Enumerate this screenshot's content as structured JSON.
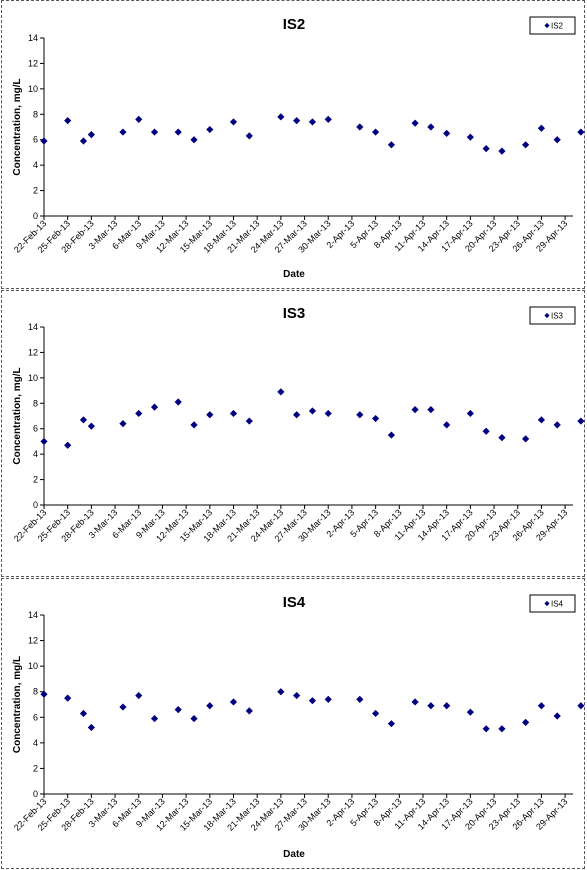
{
  "chart_data": [
    {
      "type": "scatter",
      "title": "IS2",
      "xlabel": "Date",
      "ylabel": "Concentration, mg/L",
      "ylim": [
        0,
        14
      ],
      "yticks": [
        0,
        2,
        4,
        6,
        8,
        10,
        12,
        14
      ],
      "xlim": [
        "2013-02-22",
        "2013-04-30"
      ],
      "xtick_labels": [
        "22-Feb-13",
        "25-Feb-13",
        "28-Feb-13",
        "3-Mar-13",
        "6-Mar-13",
        "9-Mar-13",
        "12-Mar-13",
        "15-Mar-13",
        "18-Mar-13",
        "21-Mar-13",
        "24-Mar-13",
        "27-Mar-13",
        "30-Mar-13",
        "2-Apr-13",
        "5-Apr-13",
        "8-Apr-13",
        "11-Apr-13",
        "14-Apr-13",
        "17-Apr-13",
        "20-Apr-13",
        "23-Apr-13",
        "26-Apr-13",
        "29-Apr-13"
      ],
      "legend": "top-right",
      "grid": false,
      "marker_color": "#000080",
      "series": [
        {
          "name": "IS2",
          "points": [
            [
              "2013-02-22",
              5.9
            ],
            [
              "2013-02-25",
              7.5
            ],
            [
              "2013-02-27",
              5.9
            ],
            [
              "2013-02-28",
              6.4
            ],
            [
              "2013-03-04",
              6.6
            ],
            [
              "2013-03-06",
              7.6
            ],
            [
              "2013-03-08",
              6.6
            ],
            [
              "2013-03-11",
              6.6
            ],
            [
              "2013-03-13",
              6.0
            ],
            [
              "2013-03-15",
              6.8
            ],
            [
              "2013-03-18",
              7.4
            ],
            [
              "2013-03-20",
              6.3
            ],
            [
              "2013-03-24",
              7.8
            ],
            [
              "2013-03-26",
              7.5
            ],
            [
              "2013-03-28",
              7.4
            ],
            [
              "2013-03-30",
              7.6
            ],
            [
              "2013-04-03",
              7.0
            ],
            [
              "2013-04-05",
              6.6
            ],
            [
              "2013-04-07",
              5.6
            ],
            [
              "2013-04-10",
              7.3
            ],
            [
              "2013-04-12",
              7.0
            ],
            [
              "2013-04-14",
              6.5
            ],
            [
              "2013-04-17",
              6.2
            ],
            [
              "2013-04-19",
              5.3
            ],
            [
              "2013-04-21",
              5.1
            ],
            [
              "2013-04-24",
              5.6
            ],
            [
              "2013-04-26",
              6.9
            ],
            [
              "2013-04-28",
              6.0
            ],
            [
              "2013-05-01",
              6.6
            ]
          ]
        }
      ]
    },
    {
      "type": "scatter",
      "title": "IS3",
      "xlabel": "",
      "ylabel": "Concentration, mg/L",
      "ylim": [
        0,
        14
      ],
      "yticks": [
        0,
        2,
        4,
        6,
        8,
        10,
        12,
        14
      ],
      "xlim": [
        "2013-02-22",
        "2013-04-30"
      ],
      "xtick_labels": [
        "22-Feb-13",
        "25-Feb-13",
        "28-Feb-13",
        "3-Mar-13",
        "6-Mar-13",
        "9-Mar-13",
        "12-Mar-13",
        "15-Mar-13",
        "18-Mar-13",
        "21-Mar-13",
        "24-Mar-13",
        "27-Mar-13",
        "30-Mar-13",
        "2-Apr-13",
        "5-Apr-13",
        "8-Apr-13",
        "11-Apr-13",
        "14-Apr-13",
        "17-Apr-13",
        "20-Apr-13",
        "23-Apr-13",
        "26-Apr-13",
        "29-Apr-13"
      ],
      "legend": "top-right",
      "grid": false,
      "marker_color": "#000080",
      "series": [
        {
          "name": "IS3",
          "points": [
            [
              "2013-02-22",
              5.0
            ],
            [
              "2013-02-25",
              4.7
            ],
            [
              "2013-02-27",
              6.7
            ],
            [
              "2013-02-28",
              6.2
            ],
            [
              "2013-03-04",
              6.4
            ],
            [
              "2013-03-06",
              7.2
            ],
            [
              "2013-03-08",
              7.7
            ],
            [
              "2013-03-11",
              8.1
            ],
            [
              "2013-03-13",
              6.3
            ],
            [
              "2013-03-15",
              7.1
            ],
            [
              "2013-03-18",
              7.2
            ],
            [
              "2013-03-20",
              6.6
            ],
            [
              "2013-03-24",
              8.9
            ],
            [
              "2013-03-26",
              7.1
            ],
            [
              "2013-03-28",
              7.4
            ],
            [
              "2013-03-30",
              7.2
            ],
            [
              "2013-04-03",
              7.1
            ],
            [
              "2013-04-05",
              6.8
            ],
            [
              "2013-04-07",
              5.5
            ],
            [
              "2013-04-10",
              7.5
            ],
            [
              "2013-04-12",
              7.5
            ],
            [
              "2013-04-14",
              6.3
            ],
            [
              "2013-04-17",
              7.2
            ],
            [
              "2013-04-19",
              5.8
            ],
            [
              "2013-04-21",
              5.3
            ],
            [
              "2013-04-24",
              5.2
            ],
            [
              "2013-04-26",
              6.7
            ],
            [
              "2013-04-28",
              6.3
            ],
            [
              "2013-05-01",
              6.6
            ]
          ]
        }
      ]
    },
    {
      "type": "scatter",
      "title": "IS4",
      "xlabel": "Date",
      "ylabel": "Concentration, mg/L",
      "ylim": [
        0,
        14
      ],
      "yticks": [
        0,
        2,
        4,
        6,
        8,
        10,
        12,
        14
      ],
      "xlim": [
        "2013-02-22",
        "2013-04-30"
      ],
      "xtick_labels": [
        "22-Feb-13",
        "25-Feb-13",
        "28-Feb-13",
        "3-Mar-13",
        "6-Mar-13",
        "9-Mar-13",
        "12-Mar-13",
        "15-Mar-13",
        "18-Mar-13",
        "21-Mar-13",
        "24-Mar-13",
        "27-Mar-13",
        "30-Mar-13",
        "2-Apr-13",
        "5-Apr-13",
        "8-Apr-13",
        "11-Apr-13",
        "14-Apr-13",
        "17-Apr-13",
        "20-Apr-13",
        "23-Apr-13",
        "26-Apr-13",
        "29-Apr-13"
      ],
      "legend": "top-right",
      "grid": false,
      "marker_color": "#000080",
      "series": [
        {
          "name": "IS4",
          "points": [
            [
              "2013-02-22",
              7.8
            ],
            [
              "2013-02-25",
              7.5
            ],
            [
              "2013-02-27",
              6.3
            ],
            [
              "2013-02-28",
              5.2
            ],
            [
              "2013-03-04",
              6.8
            ],
            [
              "2013-03-06",
              7.7
            ],
            [
              "2013-03-08",
              5.9
            ],
            [
              "2013-03-11",
              6.6
            ],
            [
              "2013-03-13",
              5.9
            ],
            [
              "2013-03-15",
              6.9
            ],
            [
              "2013-03-18",
              7.2
            ],
            [
              "2013-03-20",
              6.5
            ],
            [
              "2013-03-24",
              8.0
            ],
            [
              "2013-03-26",
              7.7
            ],
            [
              "2013-03-28",
              7.3
            ],
            [
              "2013-03-30",
              7.4
            ],
            [
              "2013-04-03",
              7.4
            ],
            [
              "2013-04-05",
              6.3
            ],
            [
              "2013-04-07",
              5.5
            ],
            [
              "2013-04-10",
              7.2
            ],
            [
              "2013-04-12",
              6.9
            ],
            [
              "2013-04-14",
              6.9
            ],
            [
              "2013-04-17",
              6.4
            ],
            [
              "2013-04-19",
              5.1
            ],
            [
              "2013-04-21",
              5.1
            ],
            [
              "2013-04-24",
              5.6
            ],
            [
              "2013-04-26",
              6.9
            ],
            [
              "2013-04-28",
              6.1
            ],
            [
              "2013-05-01",
              6.9
            ]
          ]
        }
      ]
    }
  ]
}
